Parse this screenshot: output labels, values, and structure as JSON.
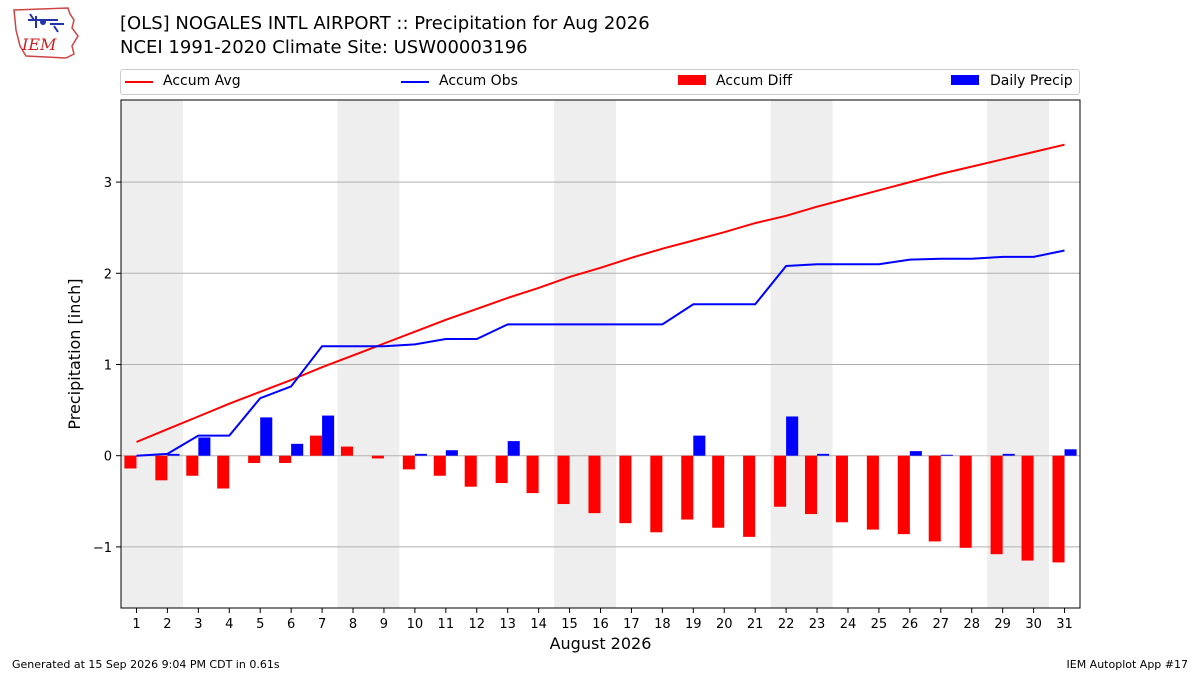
{
  "header": {
    "title": "[OLS] NOGALES INTL AIRPORT :: Precipitation for Aug 2026",
    "subtitle": "NCEI 1991-2020 Climate Site: USW00003196",
    "logo_text": "IEM"
  },
  "footer": {
    "generated": "Generated at 15 Sep 2026 9:04 PM CDT in 0.61s",
    "app": "IEM Autoplot App #17"
  },
  "legend": {
    "placement": "top",
    "items": [
      {
        "label": "Accum Avg",
        "kind": "line",
        "color": "#ff0000"
      },
      {
        "label": "Accum Obs",
        "kind": "line",
        "color": "#0000ff"
      },
      {
        "label": "Accum Diff",
        "kind": "bar",
        "color": "#ff0000"
      },
      {
        "label": "Daily Precip",
        "kind": "bar",
        "color": "#0000ff"
      }
    ]
  },
  "chart_data": {
    "type": "bar",
    "title": "[OLS] NOGALES INTL AIRPORT :: Precipitation for Aug 2026",
    "subtitle": "NCEI 1991-2020 Climate Site: USW00003196",
    "xlabel": "August 2026",
    "ylabel": "Precipitation [inch]",
    "x": [
      1,
      2,
      3,
      4,
      5,
      6,
      7,
      8,
      9,
      10,
      11,
      12,
      13,
      14,
      15,
      16,
      17,
      18,
      19,
      20,
      21,
      22,
      23,
      24,
      25,
      26,
      27,
      28,
      29,
      30,
      31
    ],
    "xlim": [
      0.5,
      31.5
    ],
    "ylim": [
      -1.67,
      3.9
    ],
    "yticks": [
      -1,
      0,
      1,
      2,
      3
    ],
    "ytick_labels": [
      "−1",
      "0",
      "1",
      "2",
      "3"
    ],
    "grid": "horizontal",
    "weekend_shading": [
      [
        1,
        2
      ],
      [
        8,
        9
      ],
      [
        15,
        16
      ],
      [
        22,
        23
      ],
      [
        29,
        30
      ]
    ],
    "weekend_color": "#eeeeee",
    "series": [
      {
        "name": "Accum Avg",
        "kind": "line",
        "color": "#ff0000",
        "values": [
          0.15,
          0.29,
          0.43,
          0.57,
          0.7,
          0.83,
          0.97,
          1.1,
          1.23,
          1.36,
          1.49,
          1.61,
          1.73,
          1.84,
          1.96,
          2.06,
          2.17,
          2.27,
          2.36,
          2.45,
          2.55,
          2.63,
          2.73,
          2.82,
          2.91,
          3.0,
          3.09,
          3.17,
          3.25,
          3.33,
          3.41
        ]
      },
      {
        "name": "Accum Obs",
        "kind": "line",
        "color": "#0000ff",
        "values": [
          0.0,
          0.02,
          0.22,
          0.22,
          0.63,
          0.76,
          1.2,
          1.2,
          1.2,
          1.22,
          1.28,
          1.28,
          1.44,
          1.44,
          1.44,
          1.44,
          1.44,
          1.44,
          1.66,
          1.66,
          1.66,
          2.08,
          2.1,
          2.1,
          2.1,
          2.15,
          2.16,
          2.16,
          2.18,
          2.18,
          2.25
        ]
      },
      {
        "name": "Accum Diff",
        "kind": "bar",
        "color": "#ff0000",
        "values": [
          -0.14,
          -0.27,
          -0.22,
          -0.36,
          -0.08,
          -0.08,
          0.22,
          0.1,
          -0.03,
          -0.15,
          -0.22,
          -0.34,
          -0.3,
          -0.41,
          -0.53,
          -0.63,
          -0.74,
          -0.84,
          -0.7,
          -0.79,
          -0.89,
          -0.56,
          -0.64,
          -0.73,
          -0.81,
          -0.86,
          -0.94,
          -1.01,
          -1.08,
          -1.15,
          -1.17
        ]
      },
      {
        "name": "Daily Precip",
        "kind": "bar",
        "color": "#0000ff",
        "values": [
          0.0,
          0.02,
          0.2,
          0.0,
          0.42,
          0.13,
          0.44,
          0.0,
          0.0,
          0.02,
          0.06,
          0.0,
          0.16,
          0.0,
          0.0,
          0.0,
          0.0,
          0.0,
          0.22,
          0.0,
          0.0,
          0.43,
          0.02,
          0.0,
          0.0,
          0.05,
          0.01,
          0.0,
          0.02,
          0.0,
          0.07
        ]
      }
    ]
  }
}
